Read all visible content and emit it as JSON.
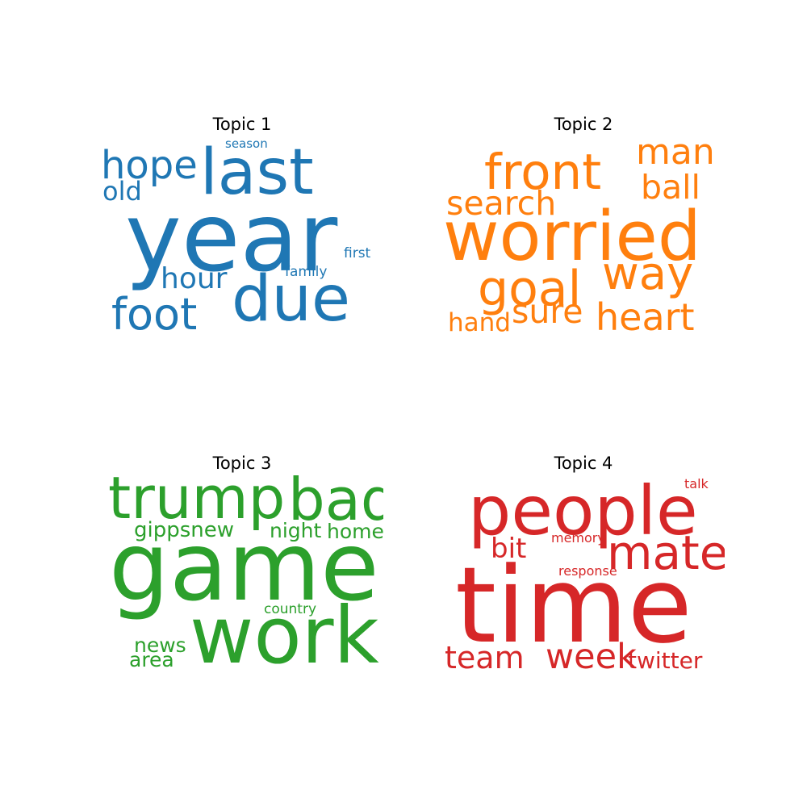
{
  "chart_data": [
    {
      "type": "wordcloud",
      "title": "Topic 1",
      "color": "#1f77b4",
      "words": [
        {
          "text": "year",
          "weight": 1.0
        },
        {
          "text": "last",
          "weight": 0.66
        },
        {
          "text": "due",
          "weight": 0.66
        },
        {
          "text": "foot",
          "weight": 0.46
        },
        {
          "text": "hope",
          "weight": 0.41
        },
        {
          "text": "hour",
          "weight": 0.31
        },
        {
          "text": "old",
          "weight": 0.28
        },
        {
          "text": "first",
          "weight": 0.15
        },
        {
          "text": "family",
          "weight": 0.15
        },
        {
          "text": "season",
          "weight": 0.13
        }
      ]
    },
    {
      "type": "wordcloud",
      "title": "Topic 2",
      "color": "#ff7f0e",
      "words": [
        {
          "text": "worried",
          "weight": 1.0
        },
        {
          "text": "front",
          "weight": 0.72
        },
        {
          "text": "goal",
          "weight": 0.7
        },
        {
          "text": "way",
          "weight": 0.66
        },
        {
          "text": "heart",
          "weight": 0.54
        },
        {
          "text": "man",
          "weight": 0.52
        },
        {
          "text": "search",
          "weight": 0.48
        },
        {
          "text": "sure",
          "weight": 0.48
        },
        {
          "text": "ball",
          "weight": 0.48
        },
        {
          "text": "hand",
          "weight": 0.36
        }
      ]
    },
    {
      "type": "wordcloud",
      "title": "Topic 3",
      "color": "#2ca02c",
      "words": [
        {
          "text": "game",
          "weight": 1.0
        },
        {
          "text": "work",
          "weight": 0.82
        },
        {
          "text": "trump",
          "weight": 0.61
        },
        {
          "text": "bad",
          "weight": 0.61
        },
        {
          "text": "gippsnew",
          "weight": 0.27
        },
        {
          "text": "night",
          "weight": 0.25
        },
        {
          "text": "home",
          "weight": 0.25
        },
        {
          "text": "news",
          "weight": 0.25
        },
        {
          "text": "area",
          "weight": 0.25
        },
        {
          "text": "country",
          "weight": 0.17
        }
      ]
    },
    {
      "type": "wordcloud",
      "title": "Topic 4",
      "color": "#d62728",
      "words": [
        {
          "text": "time",
          "weight": 1.0
        },
        {
          "text": "people",
          "weight": 0.75
        },
        {
          "text": "mate",
          "weight": 0.53
        },
        {
          "text": "week",
          "weight": 0.39
        },
        {
          "text": "team",
          "weight": 0.35
        },
        {
          "text": "bit",
          "weight": 0.31
        },
        {
          "text": "twitter",
          "weight": 0.26
        },
        {
          "text": "response",
          "weight": 0.15
        },
        {
          "text": "memory",
          "weight": 0.14
        },
        {
          "text": "talk",
          "weight": 0.14
        }
      ]
    }
  ]
}
